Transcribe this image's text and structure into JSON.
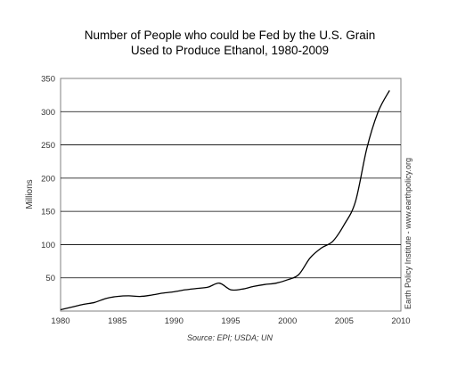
{
  "chart_data": {
    "type": "line",
    "title_lines": [
      "Number of People who could be Fed by the U.S. Grain",
      "Used to Produce Ethanol, 1980-2009"
    ],
    "xlabel": "",
    "ylabel": "Millions",
    "xlim": [
      1980,
      2010
    ],
    "ylim": [
      0,
      350
    ],
    "x_ticks": [
      1980,
      1985,
      1990,
      1995,
      2000,
      2005,
      2010
    ],
    "y_ticks": [
      50,
      100,
      150,
      200,
      250,
      300,
      350
    ],
    "grid": "horizontal",
    "legend": "none",
    "side_note": "Earth Policy Institute - www.earthpolicy.org",
    "source": "Source: EPI; USDA; UN",
    "line_color": "#000000",
    "series": [
      {
        "x": [
          1980,
          1981,
          1982,
          1983,
          1984,
          1985,
          1986,
          1987,
          1988,
          1989,
          1990,
          1991,
          1992,
          1993,
          1994,
          1995,
          1996,
          1997,
          1998,
          1999,
          2000,
          2001,
          2002,
          2003,
          2004,
          2005,
          2006,
          2007,
          2008,
          2009
        ],
        "values": [
          2,
          6,
          10,
          13,
          19,
          22,
          23,
          22,
          24,
          27,
          29,
          32,
          34,
          36,
          42,
          32,
          33,
          37,
          40,
          42,
          47,
          55,
          80,
          95,
          105,
          130,
          165,
          245,
          300,
          332
        ]
      }
    ]
  }
}
